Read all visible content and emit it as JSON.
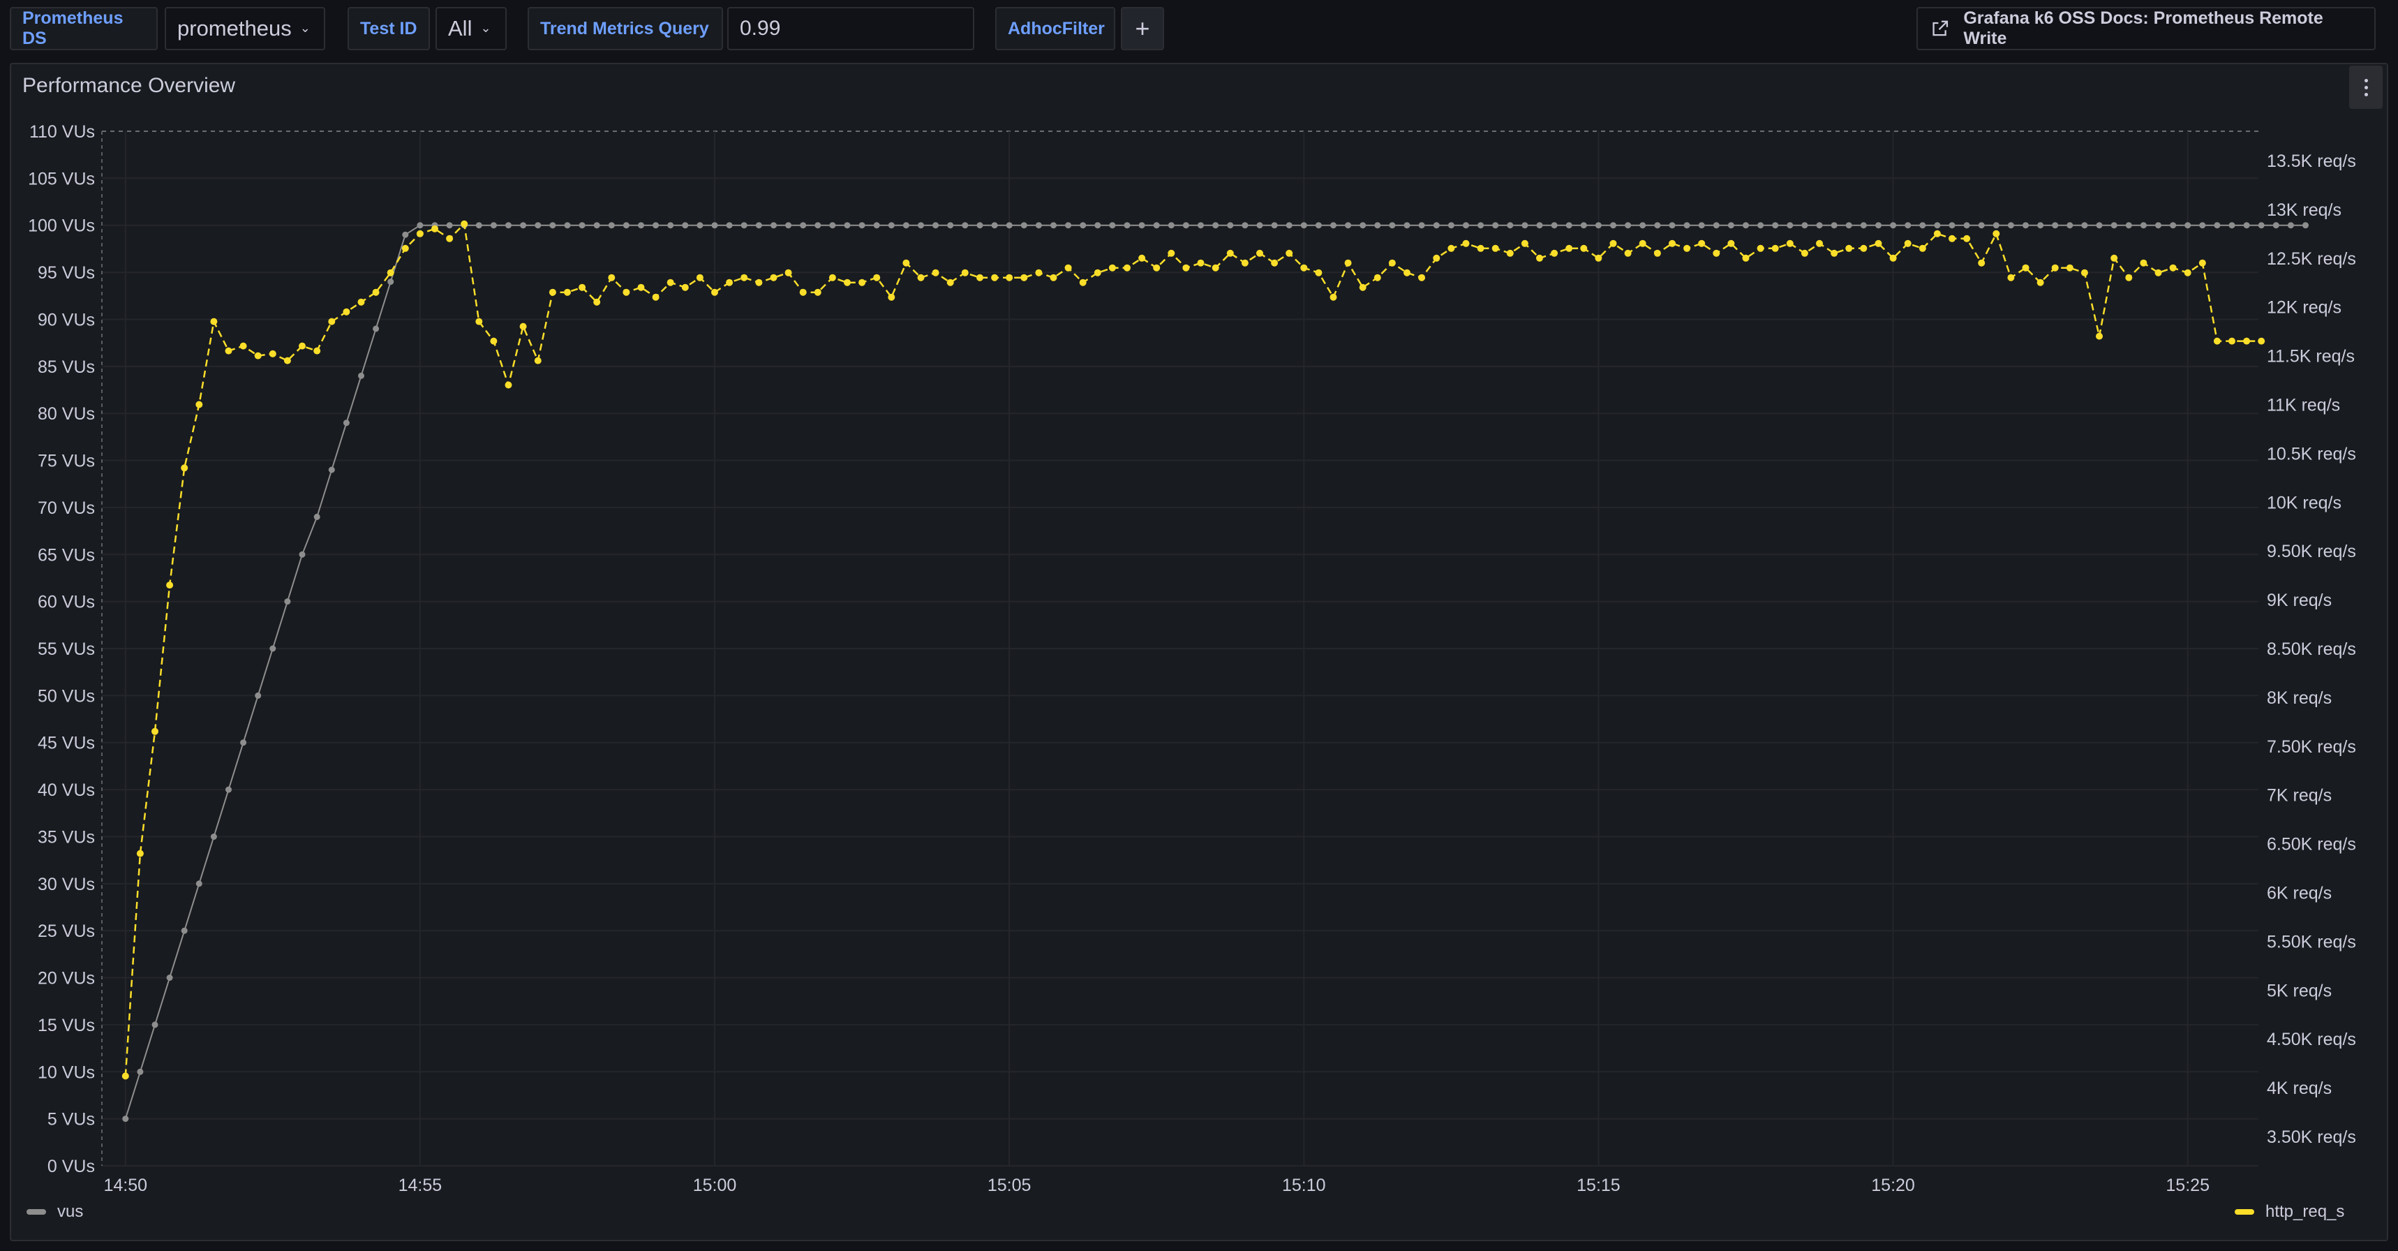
{
  "toolbar": {
    "datasource_label": "Prometheus DS",
    "datasource_value": "prometheus",
    "testid_label": "Test ID",
    "testid_value": "All",
    "trend_label": "Trend Metrics Query",
    "trend_value": "0.99",
    "adhoc_label": "AdhocFilter",
    "add_icon": "plus-icon",
    "docs_link": "Grafana k6 OSS Docs: Prometheus Remote Write",
    "docs_icon": "external-link-icon"
  },
  "panel": {
    "title": "Performance Overview",
    "menu_icon": "kebab-menu-icon"
  },
  "colors": {
    "background": "#111217",
    "panel": "#181b1f",
    "vus": "#8e8e8e",
    "http_req_s": "#fade2a",
    "accent": "#6e9fff"
  },
  "chart_data": {
    "type": "line",
    "title": "Performance Overview",
    "x_unit": "time",
    "x_tick_labels": [
      "14:50",
      "14:55",
      "15:00",
      "15:05",
      "15:10",
      "15:15",
      "15:20",
      "15:25"
    ],
    "x_tick_minutes": [
      0,
      5,
      10,
      15,
      20,
      25,
      30,
      35
    ],
    "x_range_minutes": [
      -0.4,
      36.2
    ],
    "sample_interval_minutes": 0.25,
    "left_axis": {
      "unit": "VUs",
      "range": [
        0,
        110
      ],
      "tick_labels": [
        "0 VUs",
        "5 VUs",
        "10 VUs",
        "15 VUs",
        "20 VUs",
        "25 VUs",
        "30 VUs",
        "35 VUs",
        "40 VUs",
        "45 VUs",
        "50 VUs",
        "55 VUs",
        "60 VUs",
        "65 VUs",
        "70 VUs",
        "75 VUs",
        "80 VUs",
        "85 VUs",
        "90 VUs",
        "95 VUs",
        "100 VUs",
        "105 VUs",
        "110 VUs"
      ],
      "tick_values": [
        0,
        5,
        10,
        15,
        20,
        25,
        30,
        35,
        40,
        45,
        50,
        55,
        60,
        65,
        70,
        75,
        80,
        85,
        90,
        95,
        100,
        105,
        110
      ]
    },
    "right_axis": {
      "unit": "req/s",
      "range": [
        3200,
        13800
      ],
      "tick_labels": [
        "3.50K req/s",
        "4K req/s",
        "4.50K req/s",
        "5K req/s",
        "5.50K req/s",
        "6K req/s",
        "6.50K req/s",
        "7K req/s",
        "7.50K req/s",
        "8K req/s",
        "8.50K req/s",
        "9K req/s",
        "9.50K req/s",
        "10K req/s",
        "10.5K req/s",
        "11K req/s",
        "11.5K req/s",
        "12K req/s",
        "12.5K req/s",
        "13K req/s",
        "13.5K req/s"
      ],
      "tick_values": [
        3500,
        4000,
        4500,
        5000,
        5500,
        6000,
        6500,
        7000,
        7500,
        8000,
        8500,
        9000,
        9500,
        10000,
        10500,
        11000,
        11500,
        12000,
        12500,
        13000,
        13500
      ]
    },
    "series": [
      {
        "name": "vus",
        "axis": "left",
        "style": "solid",
        "start_minute": 0,
        "values": [
          5,
          10,
          15,
          20,
          25,
          30,
          35,
          40,
          45,
          50,
          55,
          60,
          65,
          69,
          74,
          79,
          84,
          89,
          94,
          99,
          100,
          100,
          100,
          100,
          100,
          100,
          100,
          100,
          100,
          100,
          100,
          100,
          100,
          100,
          100,
          100,
          100,
          100,
          100,
          100,
          100,
          100,
          100,
          100,
          100,
          100,
          100,
          100,
          100,
          100,
          100,
          100,
          100,
          100,
          100,
          100,
          100,
          100,
          100,
          100,
          100,
          100,
          100,
          100,
          100,
          100,
          100,
          100,
          100,
          100,
          100,
          100,
          100,
          100,
          100,
          100,
          100,
          100,
          100,
          100,
          100,
          100,
          100,
          100,
          100,
          100,
          100,
          100,
          100,
          100,
          100,
          100,
          100,
          100,
          100,
          100,
          100,
          100,
          100,
          100,
          100,
          100,
          100,
          100,
          100,
          100,
          100,
          100,
          100,
          100,
          100,
          100,
          100,
          100,
          100,
          100,
          100,
          100,
          100,
          100,
          100,
          100,
          100,
          100,
          100,
          100,
          100,
          100,
          100,
          100,
          100,
          100,
          100,
          100,
          100,
          100,
          100,
          100,
          100,
          100,
          100,
          100,
          100,
          100,
          100,
          100,
          100,
          100,
          100
        ]
      },
      {
        "name": "http_req_s",
        "axis": "right",
        "style": "dashed",
        "start_minute": 0,
        "values": [
          4120,
          6400,
          7650,
          9150,
          10350,
          11000,
          11850,
          11550,
          11600,
          11500,
          11520,
          11450,
          11600,
          11550,
          11850,
          11950,
          12050,
          12150,
          12350,
          12600,
          12750,
          12800,
          12700,
          12850,
          11850,
          11650,
          11200,
          11800,
          11450,
          12150,
          12150,
          12200,
          12050,
          12300,
          12150,
          12200,
          12100,
          12250,
          12200,
          12300,
          12150,
          12250,
          12300,
          12250,
          12300,
          12350,
          12150,
          12150,
          12300,
          12250,
          12250,
          12300,
          12100,
          12450,
          12300,
          12350,
          12250,
          12350,
          12300,
          12300,
          12300,
          12300,
          12350,
          12300,
          12400,
          12250,
          12350,
          12400,
          12400,
          12500,
          12400,
          12550,
          12400,
          12450,
          12400,
          12550,
          12450,
          12550,
          12450,
          12550,
          12400,
          12350,
          12100,
          12450,
          12200,
          12300,
          12450,
          12350,
          12300,
          12500,
          12600,
          12650,
          12600,
          12600,
          12550,
          12650,
          12500,
          12550,
          12600,
          12600,
          12500,
          12650,
          12550,
          12650,
          12550,
          12650,
          12600,
          12650,
          12550,
          12650,
          12500,
          12600,
          12600,
          12650,
          12550,
          12650,
          12550,
          12600,
          12600,
          12650,
          12500,
          12650,
          12600,
          12750,
          12700,
          12700,
          12450,
          12750,
          12300,
          12400,
          12250,
          12400,
          12400,
          12350,
          11700,
          12500,
          12300,
          12450,
          12350,
          12400,
          12350,
          12450,
          11650,
          11650,
          11650,
          11650
        ]
      }
    ],
    "legend": [
      "vus",
      "http_req_s"
    ],
    "legend_placement": "bottom"
  }
}
